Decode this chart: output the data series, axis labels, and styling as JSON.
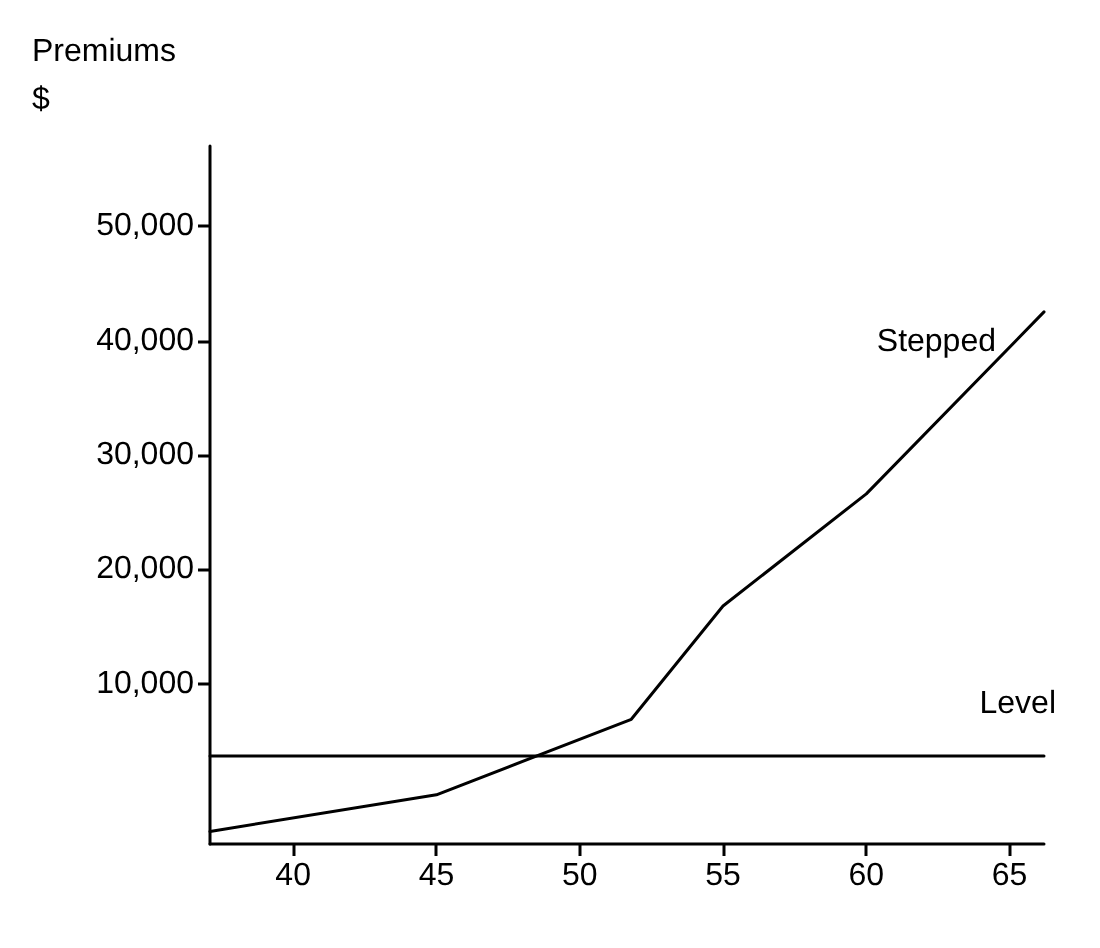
{
  "chart_data": {
    "type": "line",
    "ylabel": "Premiums\n$",
    "xlim": [
      37.1,
      66.2
    ],
    "xticks": [
      40,
      45,
      50,
      55,
      60,
      65
    ],
    "ylim": [
      -4000,
      57000
    ],
    "yticks": [
      {
        "value": 10000,
        "label": "10,000"
      },
      {
        "value": 20000,
        "label": "20,000"
      },
      {
        "value": 30000,
        "label": "30,000"
      },
      {
        "value": 40000,
        "label": "40,000"
      },
      {
        "value": 50000,
        "label": "50,000"
      }
    ],
    "series": [
      {
        "name": "Stepped",
        "color": "#000000",
        "x": [
          37.1,
          45,
          51.8,
          55,
          60,
          66.2
        ],
        "values": [
          -2900,
          300,
          6900,
          16800,
          26600,
          42500
        ]
      },
      {
        "name": "Level",
        "color": "#000000",
        "x": [
          37.1,
          66.2
        ],
        "values": [
          3700,
          3700
        ]
      }
    ],
    "grid": false,
    "marker": "none",
    "line_style": "solid"
  }
}
